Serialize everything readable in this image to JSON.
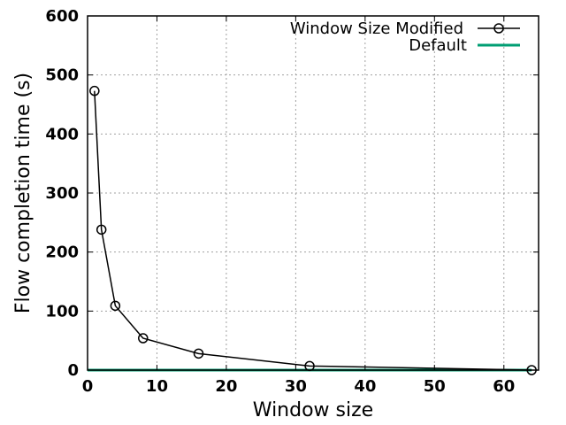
{
  "chart_data": {
    "type": "line",
    "title": "",
    "xlabel": "Window size",
    "ylabel": "Flow completion time (s)",
    "xlim": [
      0,
      65
    ],
    "ylim": [
      0,
      600
    ],
    "xticks": [
      0,
      10,
      20,
      30,
      40,
      50,
      60
    ],
    "yticks": [
      0,
      100,
      200,
      300,
      400,
      500,
      600
    ],
    "grid": true,
    "legend_position": "top-right",
    "series": [
      {
        "name": "Window Size Modified",
        "color": "#000000",
        "marker": "circle",
        "x": [
          1,
          2,
          4,
          8,
          16,
          32,
          64
        ],
        "y": [
          473,
          238,
          109,
          54,
          28,
          7,
          0
        ]
      },
      {
        "name": "Default",
        "color": "#009e73",
        "marker": "none",
        "x": [
          0,
          64
        ],
        "y": [
          0,
          0
        ]
      }
    ]
  }
}
